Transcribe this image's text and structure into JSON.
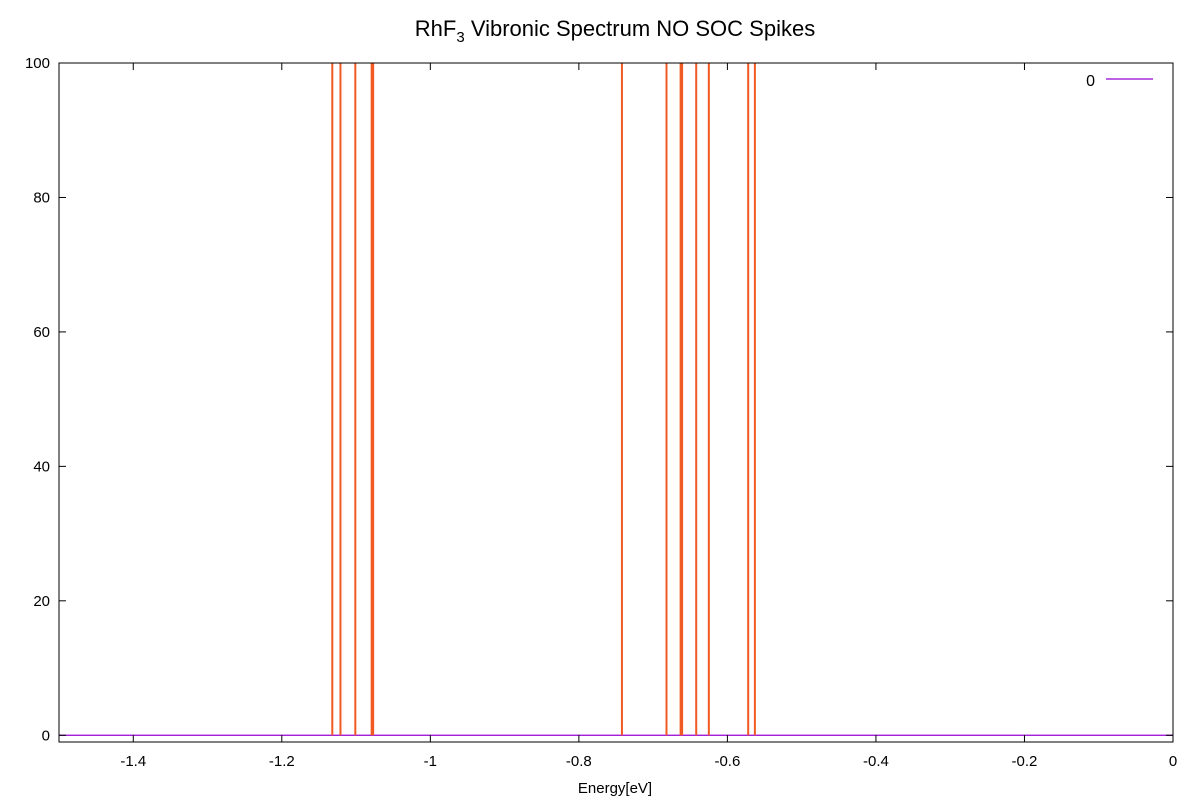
{
  "chart_data": {
    "type": "line",
    "title": "RhF",
    "title_subscript": "3",
    "title_rest": " Vibronic Spectrum NO SOC Spikes",
    "xlabel": "Energy[eV]",
    "ylabel": "",
    "xlim": [
      -1.5,
      0
    ],
    "ylim": [
      -1,
      100
    ],
    "xticks": [
      -1.4,
      -1.2,
      -1,
      -0.8,
      -0.6,
      -0.4,
      -0.2,
      0
    ],
    "xtick_labels": [
      "-1.4",
      "-1.2",
      "-1",
      "-0.8",
      "-0.6",
      "-0.4",
      "-0.2",
      "0"
    ],
    "yticks": [
      0,
      20,
      40,
      60,
      80,
      100
    ],
    "ytick_labels": [
      "0",
      "20",
      "40",
      "60",
      "80",
      "100"
    ],
    "grid": false,
    "legend": {
      "position": "top-right",
      "entries": [
        {
          "label": "0",
          "color": "#9400d3"
        }
      ]
    },
    "series": [
      {
        "name": "0",
        "color": "#9400d3",
        "x": [
          -1.5,
          0
        ],
        "y": [
          0,
          0
        ]
      },
      {
        "kind": "spikes",
        "color": "#f15a22",
        "x": [
          -1.132,
          -1.121,
          -1.101,
          -1.079,
          -1.077,
          -0.742,
          -0.682,
          -0.663,
          -0.661,
          -0.642,
          -0.625,
          -0.572,
          -0.563
        ],
        "y": [
          100,
          100,
          100,
          100,
          100,
          100,
          100,
          100,
          100,
          100,
          100,
          100,
          100
        ]
      }
    ]
  }
}
